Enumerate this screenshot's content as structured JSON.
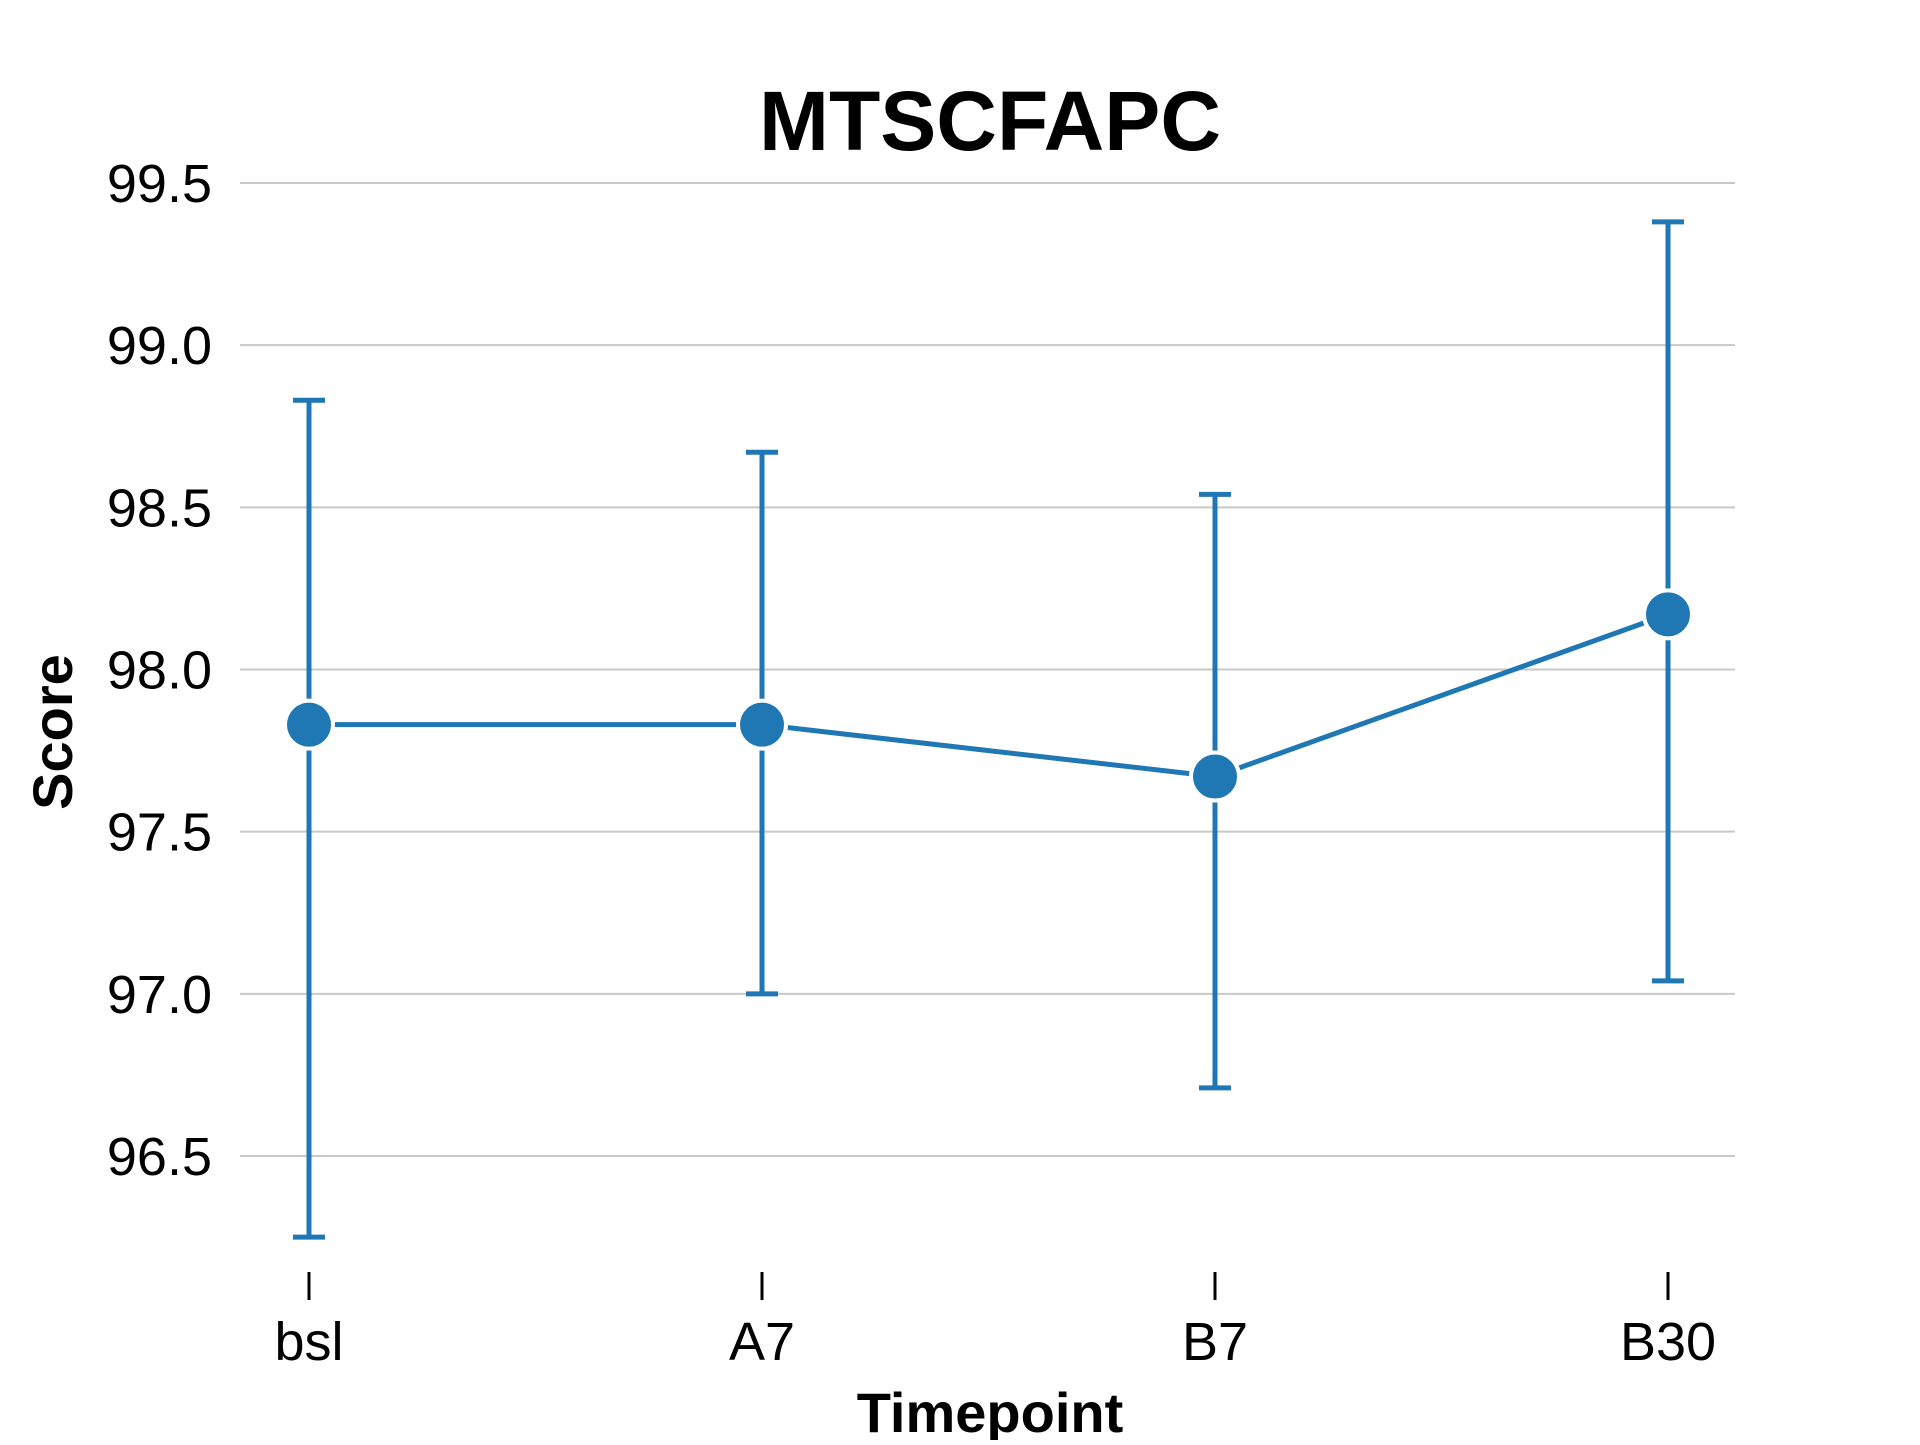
{
  "chart_data": {
    "type": "line",
    "title": "MTSCFAPC",
    "xlabel": "Timepoint",
    "ylabel": "Score",
    "categories": [
      "bsl",
      "A7",
      "B7",
      "B30"
    ],
    "series": [
      {
        "values": [
          97.83,
          97.83,
          97.67,
          98.17
        ],
        "error_low": [
          96.25,
          97.0,
          96.71,
          97.04
        ],
        "error_high": [
          98.83,
          98.67,
          98.54,
          99.38
        ],
        "color": "#1f77b4"
      }
    ],
    "ylim": [
      96.25,
      99.55
    ],
    "yticks": [
      "96.5",
      "97.0",
      "97.5",
      "98.0",
      "98.5",
      "99.0",
      "99.5"
    ],
    "grid": "horizontal",
    "legend": "none"
  }
}
